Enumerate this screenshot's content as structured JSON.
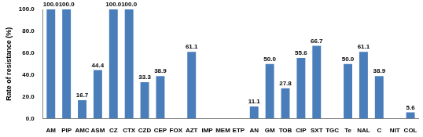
{
  "chart_data": {
    "type": "bar",
    "y_label": "Rate of resistance (%)",
    "categories": [
      "AM",
      "PIP",
      "AMC",
      "ASM",
      "CZ",
      "CTX",
      "CZD",
      "CEP",
      "FOX",
      "AZT",
      "IMP",
      "MEM",
      "ETP",
      "AN",
      "GM",
      "TOB",
      "CIP",
      "SXT",
      "TGC",
      "Te",
      "NAL",
      "C",
      "NIT",
      "COL"
    ],
    "values": [
      100,
      100,
      16.7,
      44.4,
      100,
      100,
      33.3,
      38.9,
      0,
      61.1,
      0,
      0,
      0,
      11.1,
      50,
      27.8,
      55.6,
      66.7,
      0,
      50,
      61.1,
      38.9,
      0,
      5.6
    ],
    "value_labels": [
      "100.0",
      "100.0",
      "16.7",
      "44.4",
      "100.0",
      "100.0",
      "33.3",
      "38.9",
      null,
      "61.1",
      null,
      null,
      null,
      "11.1",
      "50.0",
      "27.8",
      "55.6",
      "66.7",
      null,
      "50.0",
      "61.1",
      "38.9",
      null,
      "5.6"
    ],
    "color": "#4a7ebb",
    "ylim": [
      0,
      100
    ],
    "yticks": [
      {
        "value": 0,
        "label": "0.0"
      },
      {
        "value": 20,
        "label": "20.0"
      },
      {
        "value": 40,
        "label": "40.0"
      },
      {
        "value": 60,
        "label": "60.0"
      },
      {
        "value": 80,
        "label": "80.0"
      },
      {
        "value": 100,
        "label": "100.0"
      }
    ],
    "grid": false,
    "data_labels": true
  }
}
